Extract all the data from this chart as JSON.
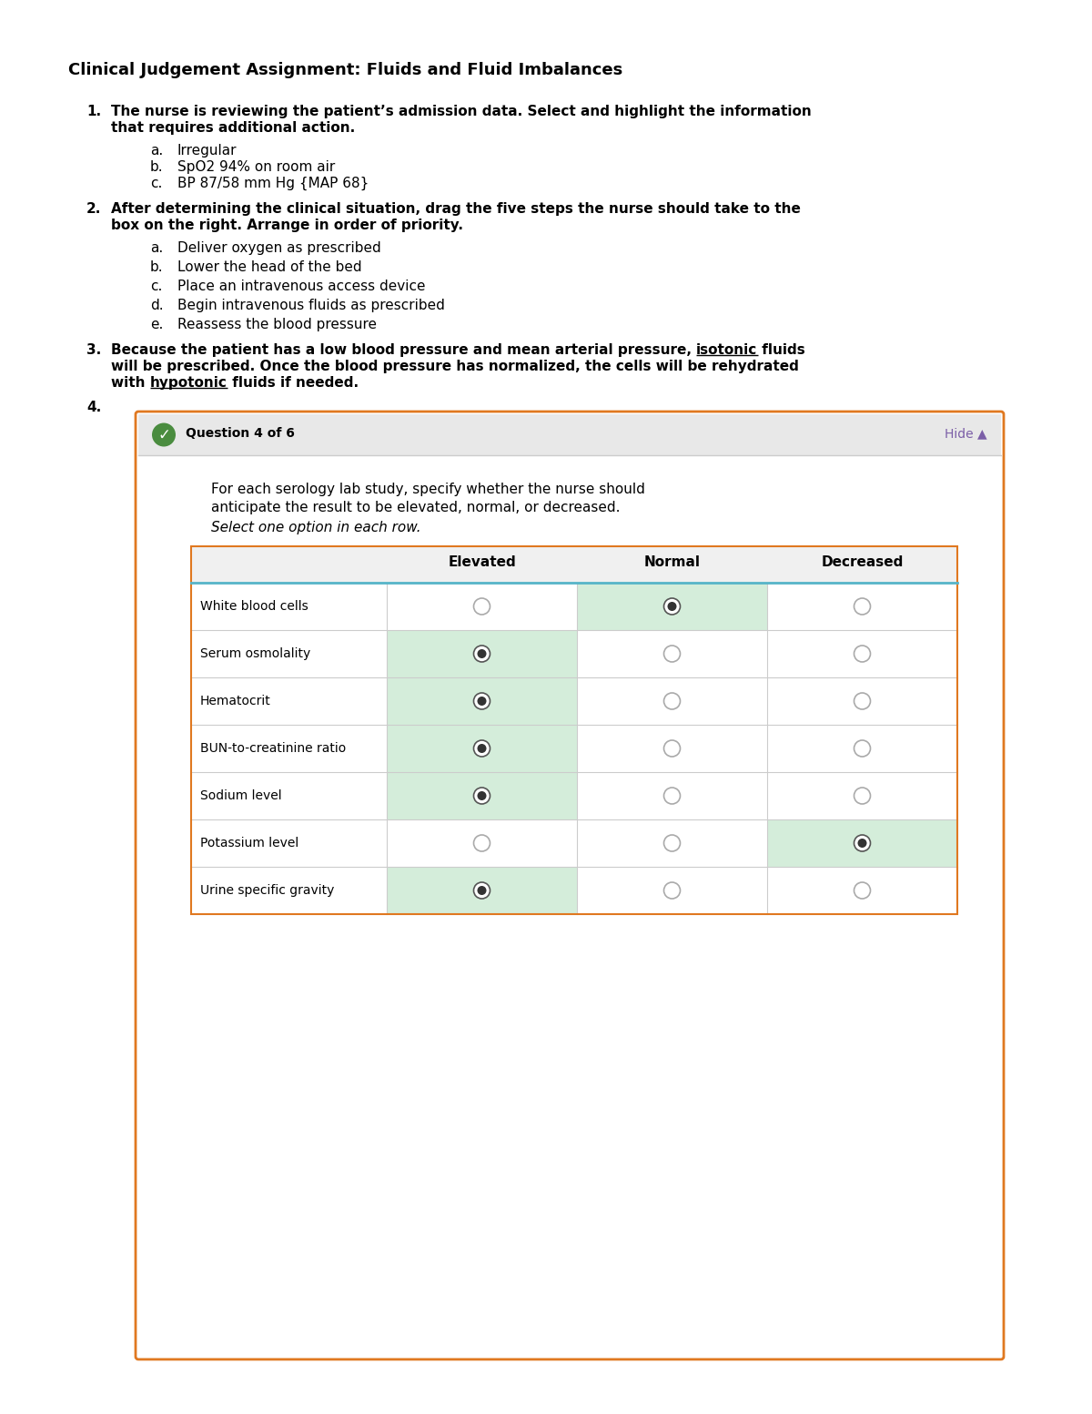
{
  "title": "Clinical Judgement Assignment: Fluids and Fluid Imbalances",
  "title_fontsize": 13,
  "body_fontsize": 11,
  "background_color": "#ffffff",
  "q1_intro_line1": "The nurse is reviewing the patient’s admission data. Select and highlight the information",
  "q1_intro_line2": "that requires additional action.",
  "q1_items": [
    "Irregular",
    "SpO2 94% on room air",
    "BP 87/58 mm Hg {MAP 68}"
  ],
  "q2_intro_line1": "After determining the clinical situation, drag the five steps the nurse should take to the",
  "q2_intro_line2": "box on the right. Arrange in order of priority.",
  "q2_items": [
    "Deliver oxygen as prescribed",
    "Lower the head of the bed",
    "Place an intravenous access device",
    "Begin intravenous fluids as prescribed",
    "Reassess the blood pressure"
  ],
  "q3_line1_pre": "Because the patient has a low blood pressure and mean arterial pressure, ",
  "q3_line1_underline": "isotonic",
  "q3_line1_post": " fluids",
  "q3_line2": "will be prescribed. Once the blood pressure has normalized, the cells will be rehydrated",
  "q3_line3_pre": "with ",
  "q3_line3_underline": "hypotonic",
  "q3_line3_post": " fluids if needed.",
  "q4_box_header": "Question 4 of 6",
  "q4_hide": "Hide ▲",
  "q4_question_line1": "For each serology lab study, specify whether the nurse should",
  "q4_question_line2": "anticipate the result to be elevated, normal, or decreased.",
  "q4_instruction": "Select one option in each row.",
  "table_headers": [
    "",
    "Elevated",
    "Normal",
    "Decreased"
  ],
  "table_rows": [
    {
      "label": "White blood cells",
      "elevated": false,
      "normal": true,
      "decreased": false,
      "elevated_bg": false,
      "normal_bg": true,
      "decreased_bg": false
    },
    {
      "label": "Serum osmolality",
      "elevated": true,
      "normal": false,
      "decreased": false,
      "elevated_bg": true,
      "normal_bg": false,
      "decreased_bg": false
    },
    {
      "label": "Hematocrit",
      "elevated": true,
      "normal": false,
      "decreased": false,
      "elevated_bg": true,
      "normal_bg": false,
      "decreased_bg": false
    },
    {
      "label": "BUN-to-creatinine ratio",
      "elevated": true,
      "normal": false,
      "decreased": false,
      "elevated_bg": true,
      "normal_bg": false,
      "decreased_bg": false
    },
    {
      "label": "Sodium level",
      "elevated": true,
      "normal": false,
      "decreased": false,
      "elevated_bg": true,
      "normal_bg": false,
      "decreased_bg": false
    },
    {
      "label": "Potassium level",
      "elevated": false,
      "normal": false,
      "decreased": true,
      "elevated_bg": false,
      "normal_bg": false,
      "decreased_bg": true
    },
    {
      "label": "Urine specific gravity",
      "elevated": true,
      "normal": false,
      "decreased": false,
      "elevated_bg": true,
      "normal_bg": false,
      "decreased_bg": false
    }
  ],
  "green_check_color": "#4a8c3f",
  "box_border_color": "#e07820",
  "box_bg": "#ffffff",
  "box_header_bg": "#e8e8e8",
  "table_header_line_color": "#56b4c8",
  "green_highlight": "#d4edda",
  "selected_dot_color": "#333333",
  "unselected_circle_color": "#aaaaaa",
  "hide_color": "#7b5ea7"
}
